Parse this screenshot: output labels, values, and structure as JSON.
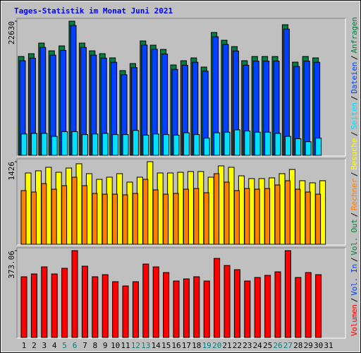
{
  "title": "Tages-Statistik im Monat Juni 2021",
  "legend_separator": "/",
  "categories": [
    "1",
    "2",
    "3",
    "4",
    "5",
    "6",
    "7",
    "8",
    "9",
    "10",
    "11",
    "12",
    "13",
    "14",
    "15",
    "16",
    "17",
    "18",
    "19",
    "20",
    "21",
    "22",
    "23",
    "24",
    "25",
    "26",
    "27",
    "28",
    "29",
    "30",
    "31"
  ],
  "category_colors": [
    "#000",
    "#000",
    "#000",
    "#000",
    "#008080",
    "#008080",
    "#000",
    "#000",
    "#000",
    "#000",
    "#000",
    "#008080",
    "#008080",
    "#000",
    "#000",
    "#000",
    "#000",
    "#000",
    "#008080",
    "#008080",
    "#000",
    "#000",
    "#000",
    "#000",
    "#000",
    "#008080",
    "#008080",
    "#000",
    "#000",
    "#000",
    "#000"
  ],
  "chart_data": [
    {
      "type": "bar",
      "ylim": [
        0,
        22630
      ],
      "yticks": [
        22630
      ],
      "series": [
        {
          "name": "Anfragen",
          "color": "#008040",
          "values": [
            16674,
            17150,
            18937,
            17627,
            18461,
            22630,
            18937,
            17627,
            17150,
            16436,
            14292,
            15483,
            19295,
            18580,
            17866,
            15245,
            15960,
            16436,
            14888,
            20724,
            19414,
            18342,
            15960,
            16674,
            16674,
            16674,
            22034,
            15722,
            16674,
            16436,
            null
          ]
        },
        {
          "name": "Dateien",
          "color": "#0040ff",
          "values": [
            15960,
            16400,
            18200,
            16900,
            17700,
            21900,
            18200,
            16900,
            16400,
            15700,
            13600,
            14800,
            18600,
            17900,
            17100,
            14500,
            15200,
            15700,
            14200,
            20000,
            18700,
            17600,
            15200,
            15900,
            15900,
            15900,
            21300,
            15000,
            15900,
            15700,
            null
          ]
        },
        {
          "name": "Seiten",
          "color": "#00e0ff",
          "values": [
            3600,
            3700,
            3700,
            3200,
            4000,
            4000,
            3500,
            3600,
            3700,
            3500,
            3500,
            4200,
            3400,
            3600,
            3500,
            3400,
            3800,
            3500,
            2900,
            3800,
            3900,
            4300,
            4100,
            3900,
            3900,
            3700,
            3200,
            2800,
            2300,
            2900,
            null
          ]
        }
      ]
    },
    {
      "type": "bar",
      "ylim": [
        0,
        1426
      ],
      "yticks": [
        1426
      ],
      "series": [
        {
          "name": "Besuche",
          "color": "#ffff00",
          "values": [
            1231,
            1268,
            1329,
            1243,
            1316,
            1390,
            1219,
            1121,
            1158,
            1219,
            1073,
            1158,
            1426,
            1231,
            1231,
            1243,
            1256,
            1256,
            1158,
            1353,
            1329,
            1182,
            1134,
            1134,
            1146,
            1219,
            1292,
            1097,
            1061,
            1097,
            null
          ]
        },
        {
          "name": "Rechner",
          "color": "#ff8000",
          "values": [
            927,
            902,
            1048,
            951,
            1012,
            1158,
            1012,
            878,
            865,
            865,
            853,
            878,
            1121,
            939,
            865,
            878,
            951,
            963,
            890,
            1219,
            1073,
            927,
            963,
            951,
            963,
            1024,
            1097,
            951,
            902,
            865,
            null
          ]
        }
      ]
    },
    {
      "type": "bar",
      "ylim": [
        0,
        373.06
      ],
      "yticks": [
        373.06
      ],
      "series": [
        {
          "name": "Volumen",
          "color": "#ff0000",
          "values": [
            260.8,
            273.0,
            303.3,
            273.0,
            297.2,
            373.06,
            306.3,
            260.8,
            269.9,
            239.6,
            221.4,
            239.6,
            315.4,
            303.3,
            279.0,
            242.6,
            251.7,
            260.8,
            242.6,
            339.7,
            309.4,
            291.2,
            242.6,
            257.8,
            266.9,
            282.1,
            373.06,
            257.8,
            279.0,
            269.9,
            null
          ]
        }
      ],
      "extra_legend": [
        {
          "name": "Vol. In",
          "color": "#0040ff"
        },
        {
          "name": "Vol. Out",
          "color": "#008040"
        }
      ]
    }
  ]
}
